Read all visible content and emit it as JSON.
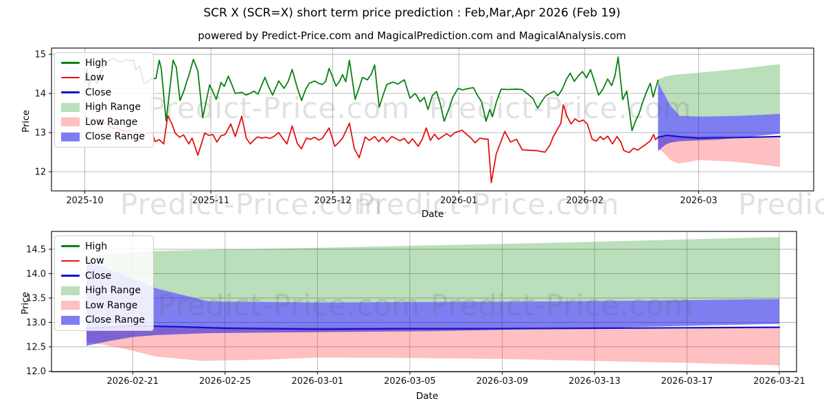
{
  "figure": {
    "title": "SCR X (SCR=X) short term price prediction : Feb,Mar,Apr 2026 (Feb 19)",
    "subtitle": "powered by Predict-Price.com and MagicalPrediction.com and MagicalAnalysis.com",
    "watermark_text": "Predict-Price.com"
  },
  "colors": {
    "high_line": "#088010",
    "low_line": "#e21111",
    "close_line": "#1111cc",
    "high_range_fill": "rgba(0,135,0,0.27)",
    "low_range_fill": "rgba(252,60,60,0.32)",
    "close_range_fill": "rgba(25,25,230,0.56)",
    "grid": "#b0b0b0",
    "spine": "#000000"
  },
  "legend": {
    "items": [
      {
        "label": "High",
        "swatch": "line",
        "color": "#088010"
      },
      {
        "label": "Low",
        "swatch": "line",
        "color": "#e21111"
      },
      {
        "label": "Close",
        "swatch": "line",
        "color": "#1111cc"
      },
      {
        "label": "High Range",
        "swatch": "patch",
        "color": "rgba(0,135,0,0.27)"
      },
      {
        "label": "Low Range",
        "swatch": "patch",
        "color": "rgba(252,60,60,0.32)"
      },
      {
        "label": "Close Range",
        "swatch": "patch",
        "color": "rgba(25,25,230,0.56)"
      }
    ]
  },
  "chart_data": [
    {
      "type": "line",
      "title": "full history with short-term prediction",
      "xlabel": "Date",
      "ylabel": "Price",
      "x_unit": "days since 2025-10-01",
      "xlim": [
        -8.2,
        179.3
      ],
      "ylim": [
        11.51,
        15.16
      ],
      "grid": true,
      "legend_position": "upper left",
      "xticks": [
        {
          "label": "2025-10",
          "x": 0
        },
        {
          "label": "2025-11",
          "x": 31
        },
        {
          "label": "2025-12",
          "x": 61
        },
        {
          "label": "2026-01",
          "x": 92
        },
        {
          "label": "2026-02",
          "x": 123
        },
        {
          "label": "2026-03",
          "x": 151
        }
      ],
      "yticks": [
        {
          "label": "12",
          "y": 12
        },
        {
          "label": "13",
          "y": 13
        },
        {
          "label": "14",
          "y": 14
        },
        {
          "label": "15",
          "y": 15
        }
      ],
      "bands": [
        {
          "name": "high-range",
          "legend": "High Range",
          "color": "rgba(0,135,0,0.27)",
          "x": [
            141,
            142,
            143,
            144,
            146.3,
            151,
            156,
            161,
            166,
            171
          ],
          "top": [
            14.35,
            14.4,
            14.44,
            14.46,
            14.49,
            14.53,
            14.58,
            14.63,
            14.69,
            14.75
          ],
          "bottom": [
            14.3,
            14.08,
            13.9,
            13.7,
            13.43,
            13.41,
            13.42,
            13.43,
            13.45,
            13.48
          ]
        },
        {
          "name": "low-range",
          "legend": "Low Range",
          "color": "rgba(252,60,60,0.32)",
          "x": [
            141,
            142,
            143,
            144,
            146,
            149,
            151,
            155,
            159,
            163,
            167,
            171
          ],
          "top": [
            12.85,
            12.9,
            12.95,
            12.93,
            12.91,
            12.9,
            12.9,
            12.9,
            12.9,
            12.9,
            12.9,
            12.9
          ],
          "bottom": [
            12.6,
            12.52,
            12.42,
            12.3,
            12.21,
            12.26,
            12.3,
            12.28,
            12.26,
            12.22,
            12.17,
            12.12
          ]
        },
        {
          "name": "close-range",
          "legend": "Close Range",
          "color": "rgba(25,25,230,0.56)",
          "x": [
            141,
            142,
            143,
            144,
            146.3,
            151,
            156,
            161,
            166,
            171
          ],
          "top": [
            14.3,
            14.08,
            13.9,
            13.7,
            13.43,
            13.41,
            13.42,
            13.43,
            13.45,
            13.48
          ],
          "bottom": [
            12.52,
            12.62,
            12.7,
            12.74,
            12.78,
            12.8,
            12.82,
            12.87,
            12.92,
            12.97
          ]
        }
      ],
      "lines": [
        {
          "name": "high-line",
          "legend": "High",
          "color": "#088010",
          "width": 1.8,
          "x": [
            0,
            0.5,
            1,
            2,
            3,
            4,
            5,
            6,
            7,
            8,
            9,
            10,
            11,
            12,
            12.5,
            13.5,
            14.5,
            15.5,
            16.5,
            17.5,
            18.3,
            18.8,
            20,
            21,
            21.7,
            22.5,
            23.4,
            24.5,
            25,
            25.6,
            26.7,
            27.8,
            29,
            30.7,
            31.5,
            32.3,
            33.5,
            34.3,
            35.3,
            36.2,
            37,
            38.6,
            39.6,
            40.6,
            41.6,
            42.6,
            44.3,
            45.3,
            46.2,
            47.7,
            49,
            50,
            51,
            52.3,
            53.3,
            54.3,
            55.2,
            56.5,
            57.5,
            58.4,
            59.2,
            60.1,
            61.8,
            62.6,
            63.4,
            64.2,
            65.1,
            66.5,
            67.5,
            68.3,
            69.5,
            70.5,
            71.3,
            72.4,
            73.5,
            74.3,
            75.8,
            77,
            78.6,
            80,
            81.3,
            82.5,
            83.5,
            84.4,
            85.5,
            86.5,
            87.4,
            88.4,
            89.5,
            90.5,
            91.8,
            93,
            94,
            95.6,
            96.6,
            97.6,
            98.7,
            99.6,
            100.3,
            101.3,
            102.4,
            104,
            106,
            107.6,
            109,
            110.2,
            111.4,
            112.4,
            113.4,
            114.4,
            115.4,
            116.4,
            117.4,
            118.4,
            119.4,
            120.4,
            121.4,
            122.4,
            123.4,
            124.4,
            125.4,
            126.4,
            127.4,
            128.6,
            129.6,
            130.4,
            131.2,
            132.3,
            133.3,
            134.6,
            135.5,
            136.3,
            137.3,
            138.2,
            139.1,
            139.8,
            141
          ],
          "y": [
            14.28,
            14.62,
            14.16,
            14.47,
            14.26,
            14.58,
            14.76,
            14.84,
            14.9,
            14.84,
            14.8,
            14.86,
            14.84,
            14.85,
            14.6,
            14.7,
            14.26,
            14.3,
            14.38,
            14.38,
            14.85,
            14.64,
            13.3,
            14.2,
            14.85,
            14.67,
            13.82,
            14.1,
            14.28,
            14.46,
            14.87,
            14.58,
            13.38,
            14.22,
            14.05,
            13.85,
            14.28,
            14.18,
            14.44,
            14.22,
            14.0,
            14.03,
            13.96,
            14.0,
            14.06,
            13.98,
            14.41,
            14.15,
            13.96,
            14.32,
            14.13,
            14.3,
            14.61,
            14.13,
            13.82,
            14.1,
            14.26,
            14.32,
            14.26,
            14.23,
            14.3,
            14.64,
            14.19,
            14.3,
            14.48,
            14.3,
            14.85,
            13.85,
            14.15,
            14.41,
            14.35,
            14.5,
            14.73,
            13.65,
            14.0,
            14.23,
            14.29,
            14.24,
            14.35,
            13.88,
            14.0,
            13.79,
            13.9,
            13.59,
            13.95,
            14.05,
            13.75,
            13.29,
            13.59,
            13.9,
            14.13,
            14.09,
            14.12,
            14.15,
            13.95,
            13.79,
            13.29,
            13.59,
            13.41,
            13.8,
            14.11,
            14.1,
            14.11,
            14.1,
            13.98,
            13.88,
            13.62,
            13.8,
            13.94,
            14.0,
            14.06,
            13.94,
            14.1,
            14.35,
            14.52,
            14.31,
            14.45,
            14.56,
            14.4,
            14.61,
            14.3,
            13.96,
            14.1,
            14.37,
            14.2,
            14.45,
            14.93,
            13.84,
            14.06,
            13.05,
            13.3,
            13.47,
            13.8,
            14.05,
            14.26,
            13.91,
            14.34
          ]
        },
        {
          "name": "low-line",
          "legend": "Low",
          "color": "#e21111",
          "width": 1.8,
          "x": [
            0,
            1,
            2,
            3,
            4,
            5,
            6,
            7,
            8,
            9,
            10,
            11,
            12,
            13,
            14,
            14.6,
            15.5,
            16.5,
            17.3,
            18.3,
            19.4,
            20.4,
            21.4,
            22.2,
            23.3,
            24.3,
            25.6,
            26.4,
            27.8,
            29.5,
            30.5,
            31.5,
            32.5,
            33.5,
            34.5,
            35.9,
            37,
            38.6,
            39.7,
            40.7,
            41.7,
            42.5,
            43.5,
            44.5,
            45.5,
            46.5,
            47.7,
            48.7,
            49.7,
            51,
            52.3,
            53.3,
            54.5,
            55.5,
            56.5,
            57.5,
            58.4,
            60.1,
            61.5,
            62.5,
            63.4,
            65.1,
            66.3,
            67.5,
            69,
            70,
            71.3,
            72.3,
            73.3,
            74.3,
            75.5,
            76.5,
            77.5,
            78.6,
            79.6,
            80.6,
            82,
            83,
            84,
            85,
            86,
            87,
            88,
            89,
            90,
            91,
            92.8,
            94,
            95,
            96,
            97.2,
            98,
            99.2,
            100,
            101.2,
            103.3,
            104.7,
            106.2,
            107.6,
            109,
            111,
            113.2,
            114.5,
            115.2,
            117.1,
            117.7,
            118.6,
            119.6,
            120.6,
            121.6,
            122.6,
            123.6,
            124.8,
            125.8,
            126.8,
            127.6,
            128.6,
            129.8,
            130.9,
            131.9,
            132.6,
            133.9,
            135,
            136,
            136.9,
            138,
            139.1,
            139.9,
            140.4,
            141
          ],
          "y": [
            13.42,
            13.36,
            13.28,
            13.26,
            13.2,
            13.26,
            13.16,
            13.1,
            13.12,
            13.06,
            13.03,
            13.06,
            12.98,
            13.0,
            12.96,
            12.94,
            12.98,
            13.01,
            12.77,
            12.82,
            12.71,
            13.43,
            13.23,
            12.99,
            12.88,
            12.94,
            12.71,
            12.86,
            12.42,
            12.99,
            12.93,
            12.95,
            12.76,
            12.92,
            12.95,
            13.22,
            12.9,
            13.42,
            12.86,
            12.71,
            12.82,
            12.89,
            12.86,
            12.88,
            12.85,
            12.9,
            13.0,
            12.85,
            12.71,
            13.17,
            12.71,
            12.59,
            12.86,
            12.83,
            12.88,
            12.81,
            12.85,
            13.12,
            12.65,
            12.75,
            12.86,
            13.24,
            12.59,
            12.36,
            12.89,
            12.8,
            12.9,
            12.77,
            12.88,
            12.76,
            12.9,
            12.85,
            12.79,
            12.85,
            12.72,
            12.84,
            12.65,
            12.83,
            13.12,
            12.8,
            12.96,
            12.83,
            12.9,
            12.97,
            12.9,
            13.0,
            13.06,
            12.95,
            12.86,
            12.74,
            12.86,
            12.84,
            12.83,
            11.72,
            12.45,
            13.03,
            12.76,
            12.83,
            12.56,
            12.55,
            12.54,
            12.5,
            12.7,
            12.89,
            13.24,
            13.71,
            13.42,
            13.22,
            13.35,
            13.28,
            13.32,
            13.22,
            12.83,
            12.78,
            12.9,
            12.82,
            12.91,
            12.71,
            12.9,
            12.75,
            12.54,
            12.49,
            12.6,
            12.55,
            12.62,
            12.7,
            12.79,
            12.95,
            12.82,
            12.88
          ]
        },
        {
          "name": "close-line",
          "legend": "Close",
          "color": "#1111cc",
          "width": 2.1,
          "x": [
            141,
            142,
            143,
            144,
            145,
            147,
            151,
            155,
            159,
            163,
            167,
            171
          ],
          "y": [
            12.88,
            12.9,
            12.93,
            12.92,
            12.91,
            12.89,
            12.86,
            12.87,
            12.87,
            12.88,
            12.89,
            12.9
          ]
        }
      ]
    },
    {
      "type": "line",
      "title": "prediction zoom 2026-02-19 to 2026-03-21",
      "xlabel": "Date",
      "ylabel": "Price",
      "x_unit": "days since 2026-02-19",
      "xlim": [
        -1.517,
        30.745
      ],
      "ylim": [
        11.986,
        14.866
      ],
      "grid": true,
      "legend_position": "upper left",
      "xticks": [
        {
          "label": "2026-02-21",
          "x": 2
        },
        {
          "label": "2026-02-25",
          "x": 6
        },
        {
          "label": "2026-03-01",
          "x": 10
        },
        {
          "label": "2026-03-05",
          "x": 14
        },
        {
          "label": "2026-03-09",
          "x": 18
        },
        {
          "label": "2026-03-13",
          "x": 22
        },
        {
          "label": "2026-03-17",
          "x": 26
        },
        {
          "label": "2026-03-21",
          "x": 30
        }
      ],
      "yticks": [
        {
          "label": "12.0",
          "y": 12.0
        },
        {
          "label": "12.5",
          "y": 12.5
        },
        {
          "label": "13.0",
          "y": 13.0
        },
        {
          "label": "13.5",
          "y": 13.5
        },
        {
          "label": "14.0",
          "y": 14.0
        },
        {
          "label": "14.5",
          "y": 14.5
        }
      ],
      "bands": [
        {
          "name": "high-range",
          "legend": "High Range",
          "color": "rgba(0,135,0,0.27)",
          "x": [
            0,
            1,
            2,
            3,
            5.3,
            10,
            15,
            20,
            25,
            30
          ],
          "top": [
            14.35,
            14.4,
            14.44,
            14.46,
            14.49,
            14.53,
            14.58,
            14.63,
            14.69,
            14.75
          ],
          "bottom": [
            14.3,
            14.08,
            13.9,
            13.7,
            13.43,
            13.41,
            13.42,
            13.43,
            13.45,
            13.48
          ]
        },
        {
          "name": "low-range",
          "legend": "Low Range",
          "color": "rgba(252,60,60,0.32)",
          "x": [
            0,
            1,
            2,
            3,
            5,
            8,
            10,
            14,
            18,
            22,
            26,
            30
          ],
          "top": [
            12.85,
            12.9,
            12.95,
            12.93,
            12.91,
            12.9,
            12.9,
            12.9,
            12.9,
            12.9,
            12.9,
            12.9
          ],
          "bottom": [
            12.6,
            12.52,
            12.42,
            12.3,
            12.21,
            12.24,
            12.28,
            12.27,
            12.25,
            12.21,
            12.17,
            12.12
          ]
        },
        {
          "name": "close-range",
          "legend": "Close Range",
          "color": "rgba(25,25,230,0.56)",
          "x": [
            0,
            1,
            2,
            3,
            5.3,
            10,
            15,
            20,
            25,
            30
          ],
          "top": [
            14.3,
            14.08,
            13.9,
            13.7,
            13.43,
            13.41,
            13.42,
            13.43,
            13.45,
            13.48
          ],
          "bottom": [
            12.52,
            12.62,
            12.7,
            12.74,
            12.78,
            12.8,
            12.82,
            12.87,
            12.92,
            12.97
          ]
        }
      ],
      "lines": [
        {
          "name": "close-line",
          "legend": "Close",
          "color": "#1111cc",
          "width": 2.2,
          "x": [
            0,
            1,
            2,
            3,
            4,
            6,
            10,
            14,
            18,
            22,
            26,
            30
          ],
          "y": [
            12.88,
            12.9,
            12.93,
            12.92,
            12.91,
            12.88,
            12.86,
            12.87,
            12.87,
            12.88,
            12.89,
            12.9
          ]
        }
      ]
    }
  ]
}
